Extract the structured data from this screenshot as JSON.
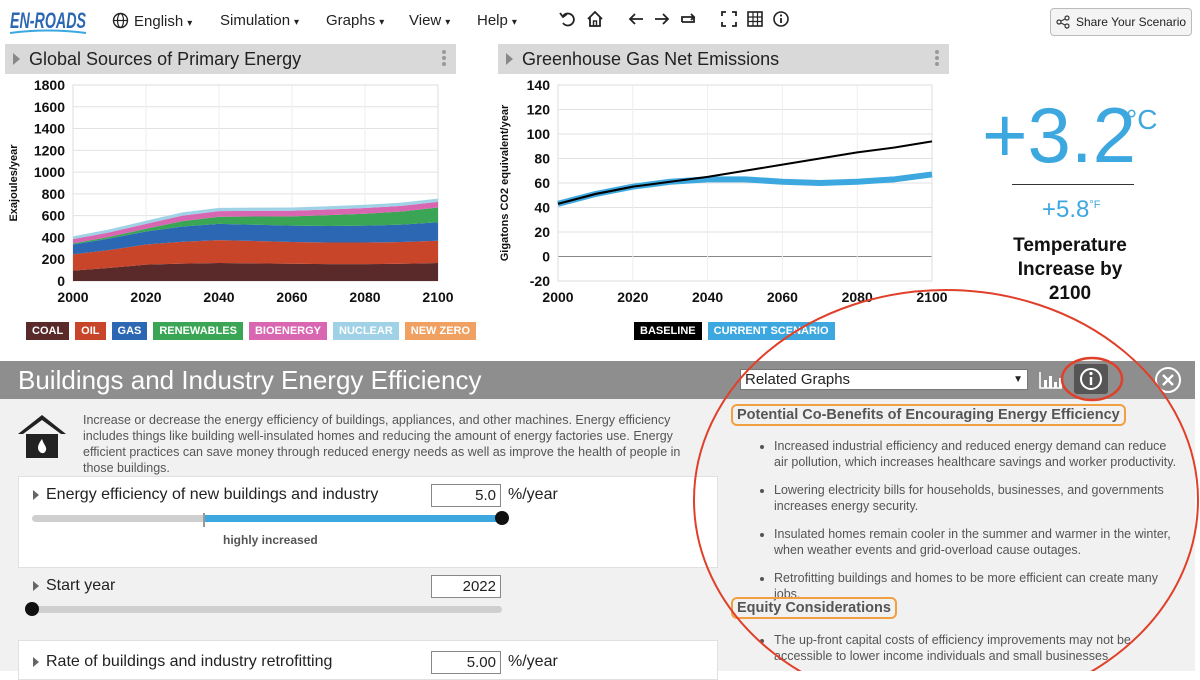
{
  "app": {
    "logo_text": "EN-ROADS"
  },
  "menu": {
    "language": "English",
    "simulation": "Simulation",
    "graphs": "Graphs",
    "view": "View",
    "help": "Help"
  },
  "toolbar_icons": [
    "undo-icon",
    "home-icon",
    "back-icon",
    "forward-icon",
    "redo-icon",
    "fullscreen-icon",
    "table-icon",
    "info-icon"
  ],
  "share": {
    "label": "Share Your Scenario"
  },
  "graph1": {
    "title": "Global Sources of Primary Energy",
    "legend": [
      {
        "label": "COAL",
        "color": "#5a2a2a"
      },
      {
        "label": "OIL",
        "color": "#c8452a"
      },
      {
        "label": "GAS",
        "color": "#2c67b3"
      },
      {
        "label": "RENEWABLES",
        "color": "#3aa655"
      },
      {
        "label": "BIOENERGY",
        "color": "#d966b1"
      },
      {
        "label": "NUCLEAR",
        "color": "#9fd2e6"
      },
      {
        "label": "NEW ZERO",
        "color": "#f0a060"
      }
    ]
  },
  "graph2": {
    "title": "Greenhouse Gas Net Emissions",
    "legend": [
      {
        "label": "BASELINE",
        "color": "#000000"
      },
      {
        "label": "CURRENT SCENARIO",
        "color": "#3da8e0"
      }
    ]
  },
  "chart_data": [
    {
      "type": "area",
      "title": "Global Sources of Primary Energy",
      "ylabel": "Exajoules/year",
      "xlabel": "",
      "x": [
        2000,
        2010,
        2020,
        2030,
        2040,
        2050,
        2060,
        2070,
        2080,
        2090,
        2100
      ],
      "xticks": [
        2000,
        2020,
        2040,
        2060,
        2080,
        2100
      ],
      "yticks": [
        0,
        200,
        400,
        600,
        800,
        1000,
        1200,
        1400,
        1600,
        1800
      ],
      "ylim": [
        0,
        1800
      ],
      "xlim": [
        2000,
        2100
      ],
      "grid": true,
      "series": [
        {
          "name": "COAL",
          "values": [
            95,
            120,
            150,
            160,
            165,
            162,
            158,
            155,
            155,
            158,
            165
          ]
        },
        {
          "name": "OIL",
          "values": [
            150,
            165,
            185,
            200,
            210,
            205,
            200,
            198,
            198,
            200,
            205
          ]
        },
        {
          "name": "GAS",
          "values": [
            90,
            105,
            120,
            140,
            150,
            150,
            150,
            152,
            155,
            160,
            170
          ]
        },
        {
          "name": "RENEWABLES",
          "values": [
            10,
            15,
            25,
            50,
            65,
            75,
            85,
            100,
            110,
            120,
            135
          ]
        },
        {
          "name": "BIOENERGY",
          "values": [
            40,
            42,
            45,
            50,
            52,
            52,
            52,
            52,
            52,
            52,
            52
          ]
        },
        {
          "name": "NUCLEAR",
          "values": [
            25,
            27,
            28,
            30,
            30,
            30,
            30,
            30,
            30,
            30,
            30
          ]
        },
        {
          "name": "NEW ZERO",
          "values": [
            0,
            0,
            0,
            0,
            0,
            0,
            0,
            0,
            0,
            0,
            0
          ]
        }
      ]
    },
    {
      "type": "line",
      "title": "Greenhouse Gas Net Emissions",
      "ylabel": "Gigatons CO2 equivalent/year",
      "xlabel": "",
      "x": [
        2000,
        2005,
        2010,
        2015,
        2020,
        2025,
        2030,
        2040,
        2050,
        2060,
        2070,
        2080,
        2090,
        2100
      ],
      "xticks": [
        2000,
        2020,
        2040,
        2060,
        2080,
        2100
      ],
      "yticks": [
        -20,
        0,
        20,
        40,
        60,
        80,
        100,
        120,
        140
      ],
      "ylim": [
        -20,
        140
      ],
      "xlim": [
        2000,
        2100
      ],
      "grid": true,
      "series": [
        {
          "name": "BASELINE",
          "values": [
            43,
            47,
            51,
            54,
            57,
            59,
            61,
            65,
            70,
            75,
            80,
            85,
            89,
            94
          ]
        },
        {
          "name": "CURRENT SCENARIO",
          "values": [
            43,
            47,
            51,
            54,
            57,
            59,
            61,
            63,
            63,
            61,
            60,
            61,
            63,
            67
          ]
        }
      ]
    }
  ],
  "temperature": {
    "value": "+3.2",
    "unit_c": "°C",
    "value_f": "+5.8",
    "unit_f": "°F",
    "label_line1": "Temperature",
    "label_line2": "Increase by",
    "label_line3": "2100"
  },
  "lever": {
    "title": "Buildings and Industry Energy Efficiency",
    "related_graphs": "Related Graphs",
    "description": "Increase or decrease the energy efficiency of buildings, appliances, and other machines. Energy efficiency includes things like building well-insulated homes and reducing the amount of energy factories use. Energy efficient practices can save money through reduced energy needs as well as improve the health of people in those buildings.",
    "sliders": [
      {
        "label": "Energy efficiency of new buildings and industry",
        "value": "5.0",
        "unit": "%/year",
        "status": "highly increased",
        "level": 1.0,
        "baseline": 0.365
      },
      {
        "label": "Start year",
        "value": "2022",
        "unit": "",
        "level": 0.0
      },
      {
        "label": "Rate of buildings and industry retrofitting",
        "value": "5.00",
        "unit": "%/year"
      }
    ]
  },
  "info": {
    "cobenefits_title": "Potential Co-Benefits of Encouraging Energy Efficiency",
    "cobenefits": [
      "Increased industrial efficiency and reduced energy demand can reduce air pollution, which increases healthcare savings and worker productivity.",
      "Lowering electricity bills for households, businesses, and governments increases energy security.",
      "Insulated homes remain cooler in the summer and warmer in the winter, when weather events and grid-overload cause outages.",
      "Retrofitting buildings and homes to be more efficient can create many jobs."
    ],
    "equity_title": "Equity Considerations",
    "equity": [
      "The up-front capital costs of efficiency improvements may not be accessible to lower income individuals and small businesses."
    ]
  },
  "annotation_color": "#e0402a"
}
